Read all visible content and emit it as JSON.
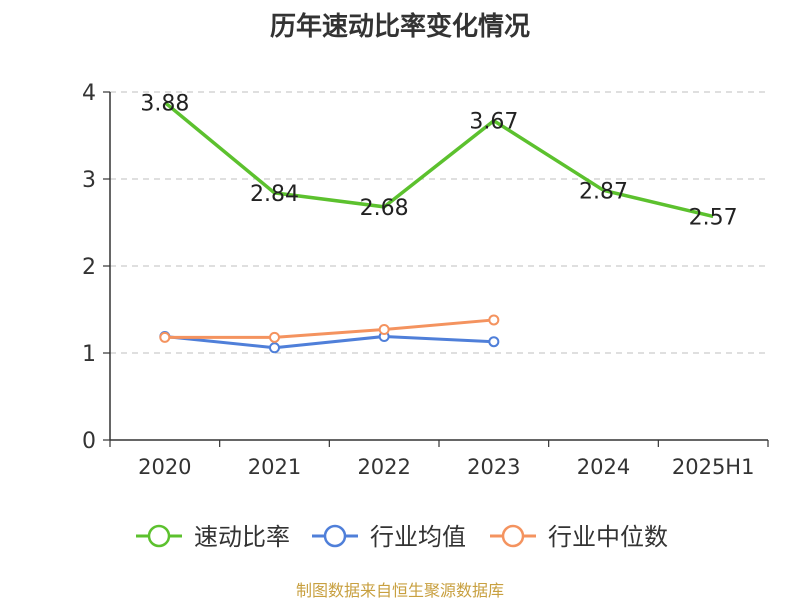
{
  "chart_data": {
    "type": "line",
    "title": "历年速动比率变化情况",
    "categories": [
      "2020",
      "2021",
      "2022",
      "2023",
      "2024",
      "2025H1"
    ],
    "yticks": [
      "0",
      "1",
      "2",
      "3",
      "4"
    ],
    "ylim": [
      0,
      4
    ],
    "grid": true,
    "legend_position": "bottom",
    "series": [
      {
        "name": "速动比率",
        "color": "#5cc12e",
        "values": [
          3.88,
          2.84,
          2.68,
          3.67,
          2.87,
          2.57
        ],
        "labels": [
          "3.88",
          "2.84",
          "2.68",
          "3.67",
          "2.87",
          "2.57"
        ],
        "show_markers": false
      },
      {
        "name": "行业均值",
        "color": "#4f7fd9",
        "values": [
          1.19,
          1.06,
          1.19,
          1.13,
          null,
          null
        ],
        "show_markers": true
      },
      {
        "name": "行业中位数",
        "color": "#f4935f",
        "values": [
          1.18,
          1.18,
          1.27,
          1.38,
          null,
          null
        ],
        "show_markers": true
      }
    ]
  },
  "footer": "制图数据来自恒生聚源数据库"
}
